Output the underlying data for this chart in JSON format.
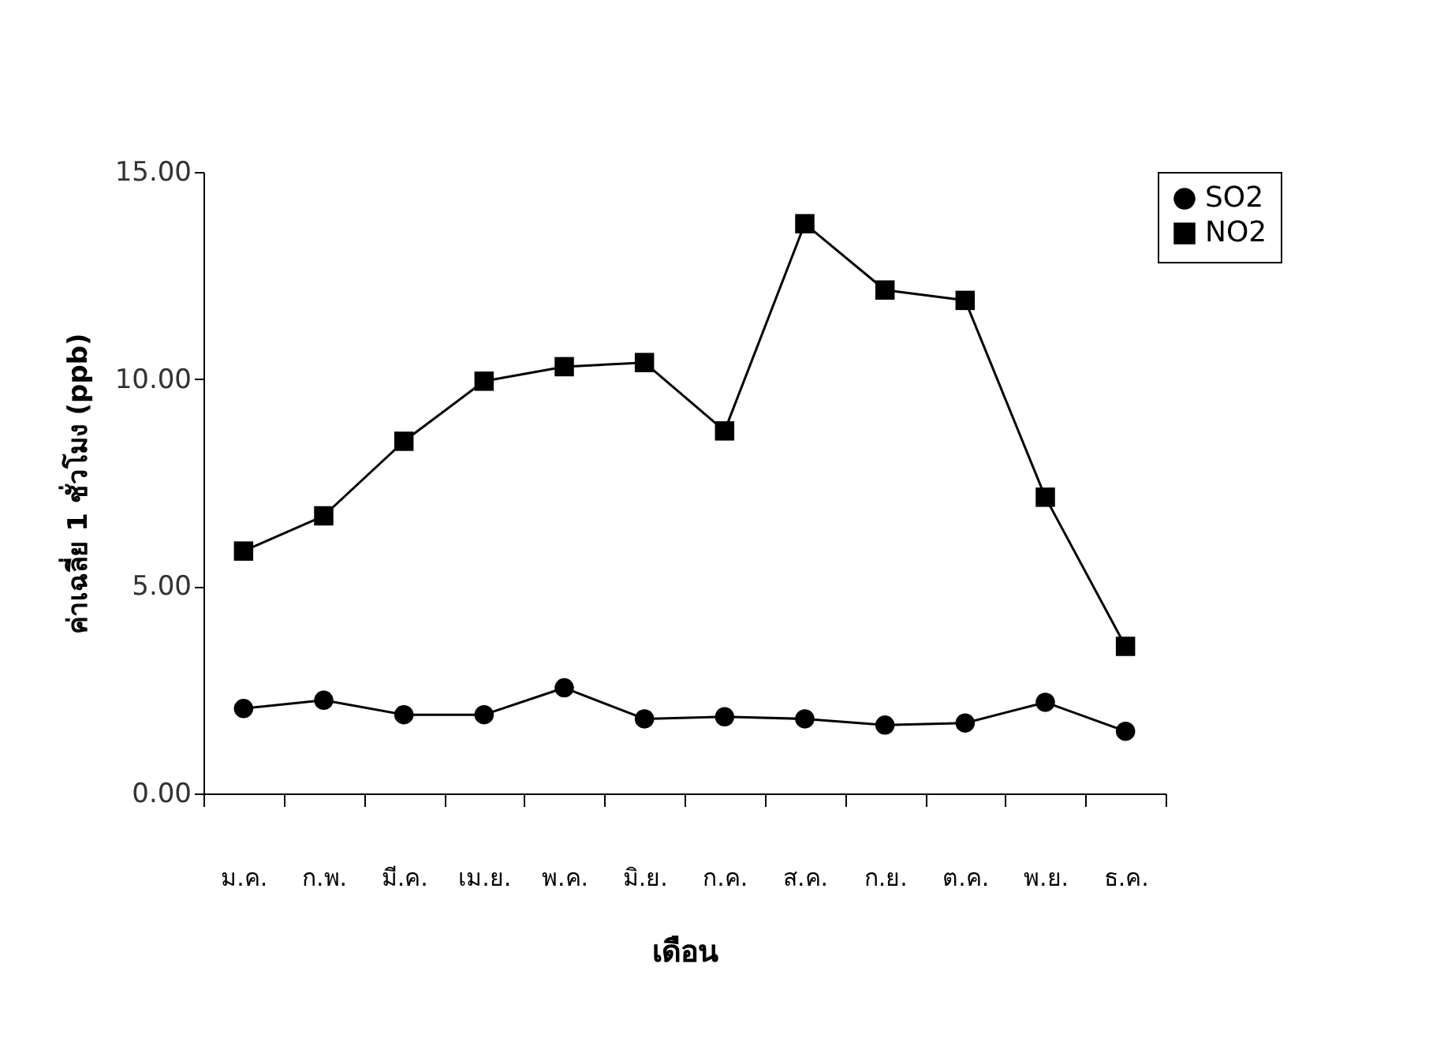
{
  "chart_data": {
    "type": "line",
    "xlabel": "เดือน",
    "ylabel": "ค่าเฉลี่ย 1 ชั่วโมง (ppb)",
    "categories": [
      "ม.ค.",
      "ก.พ.",
      "มี.ค.",
      "เม.ย.",
      "พ.ค.",
      "มิ.ย.",
      "ก.ค.",
      "ส.ค.",
      "ก.ย.",
      "ต.ค.",
      "พ.ย.",
      "ธ.ค."
    ],
    "series": [
      {
        "name": "SO2",
        "color": "#000000",
        "marker": "circle",
        "values": [
          2.05,
          2.25,
          1.9,
          1.9,
          2.55,
          1.8,
          1.85,
          1.8,
          1.65,
          1.7,
          2.2,
          1.5
        ]
      },
      {
        "name": "NO2",
        "color": "#000000",
        "marker": "square",
        "values": [
          5.85,
          6.7,
          8.5,
          9.95,
          10.3,
          10.4,
          8.75,
          13.75,
          12.15,
          11.9,
          7.15,
          3.55
        ]
      }
    ],
    "ylim": [
      0,
      15
    ],
    "yticks": [
      {
        "value": 0,
        "label": "0.00"
      },
      {
        "value": 5,
        "label": "5.00"
      },
      {
        "value": 10,
        "label": "10.00"
      },
      {
        "value": 15,
        "label": "15.00"
      }
    ],
    "grid": false,
    "legend": "right",
    "line_style": "solid"
  }
}
